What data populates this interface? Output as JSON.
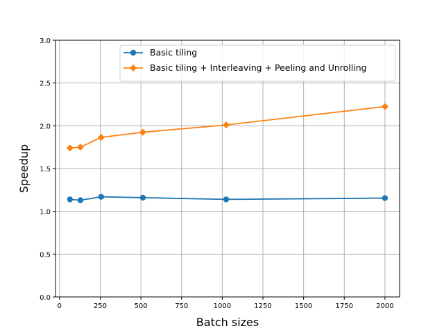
{
  "chart_data": {
    "type": "line",
    "xlabel": "Batch sizes",
    "ylabel": "Speedup",
    "xlim": [
      -25,
      2090
    ],
    "ylim": [
      0,
      3.0
    ],
    "x_ticks": [
      0,
      250,
      500,
      750,
      1000,
      1250,
      1500,
      1750,
      2000
    ],
    "y_ticks": [
      0.0,
      0.5,
      1.0,
      1.5,
      2.0,
      2.5,
      3.0
    ],
    "x_tick_labels": [
      "0",
      "250",
      "500",
      "750",
      "1000",
      "1250",
      "1500",
      "1750",
      "2000"
    ],
    "y_tick_labels": [
      "0.0",
      "0.5",
      "1.0",
      "1.5",
      "2.0",
      "2.5",
      "3.0"
    ],
    "grid": true,
    "legend_position": "top-right",
    "x": [
      64,
      128,
      256,
      512,
      1024,
      2000
    ],
    "series": [
      {
        "name": "Basic tiling",
        "values": [
          1.14,
          1.13,
          1.17,
          1.16,
          1.14,
          1.155
        ],
        "color": "#1f77b4",
        "marker": "circle"
      },
      {
        "name": "Basic tiling + Interleaving + Peeling and Unrolling",
        "values": [
          1.74,
          1.75,
          1.865,
          1.925,
          2.01,
          2.225
        ],
        "color": "#ff7f0e",
        "marker": "diamond"
      }
    ]
  }
}
